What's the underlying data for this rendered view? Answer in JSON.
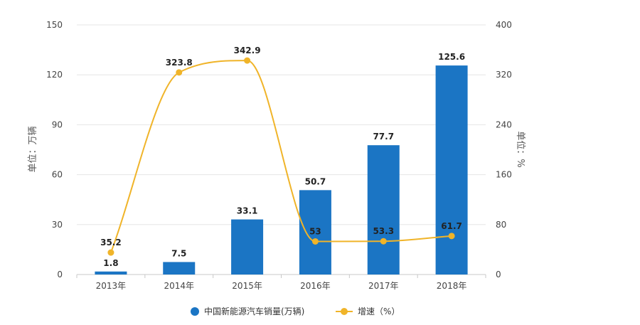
{
  "chart_data": {
    "type": "bar",
    "categories": [
      "2013年",
      "2014年",
      "2015年",
      "2016年",
      "2017年",
      "2018年"
    ],
    "series": [
      {
        "name": "中国新能源汽车销量(万辆)",
        "type": "bar",
        "axis": "left",
        "values": [
          1.8,
          7.5,
          33.1,
          50.7,
          77.7,
          125.6
        ],
        "labels": [
          "1.8",
          "7.5",
          "33.1",
          "50.7",
          "77.7",
          "125.6"
        ],
        "color": "#1b75c4"
      },
      {
        "name": "增速（%）",
        "type": "line",
        "axis": "right",
        "values": [
          35.2,
          323.8,
          342.9,
          53,
          53.3,
          61.7
        ],
        "labels": [
          "35.2",
          "323.8",
          "342.9",
          "53",
          "53.3",
          "61.7"
        ],
        "color": "#f0b429"
      }
    ],
    "y_left": {
      "label": "单位：万辆",
      "ylim": [
        0,
        150
      ],
      "ticks": [
        "0",
        "30",
        "60",
        "90",
        "120",
        "150"
      ]
    },
    "y_right": {
      "label": "单位：%",
      "ylim": [
        0,
        400
      ],
      "ticks": [
        "0",
        "80",
        "160",
        "240",
        "320",
        "400"
      ]
    },
    "grid": true,
    "legend_position": "bottom-center"
  }
}
